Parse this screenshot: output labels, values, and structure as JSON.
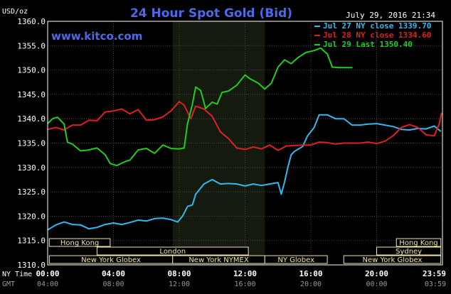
{
  "chart_data": {
    "type": "line",
    "title": "24 Hour Spot Gold (Bid)",
    "watermark": "www.kitco.com",
    "timestamp": "July 29, 2016 21:34",
    "ylabel": "USD/oz",
    "ylim": [
      1310,
      1360
    ],
    "y_ticks": [
      "1360.0",
      "1355.0",
      "1350.0",
      "1345.0",
      "1340.0",
      "1335.0",
      "1330.0",
      "1325.0",
      "1320.0",
      "1315.0",
      "1310.0"
    ],
    "x_range_hours": [
      0,
      24
    ],
    "x_ticks_ny": [
      "00:00",
      "04:00",
      "08:00",
      "12:00",
      "16:00",
      "20:00",
      "23:59"
    ],
    "x_ticks_gmt": [
      "04:00",
      "08:00",
      "12:00",
      "16:00",
      "20:00",
      "00:00",
      "03:59"
    ],
    "x_axis_labels": {
      "ny": "NY Time",
      "gmt": "GMT"
    },
    "highlight_session_hours": [
      7.6,
      13.2
    ],
    "grid": true,
    "legend_position": "top-right",
    "colors": {
      "background": "#000000",
      "session_band": "#141a0e",
      "grid": "#4a4a4a",
      "text": "#ffffff",
      "title": "#4c6ae8",
      "jul27": "#33b8f0",
      "jul28": "#e02020",
      "jul29": "#22cc22",
      "market_box": "#f0e6a8"
    },
    "series": [
      {
        "name": "Jul 27 NY close 1339.70",
        "color": "#33b8f0",
        "points": [
          [
            0,
            1317.2
          ],
          [
            0.5,
            1318.2
          ],
          [
            1,
            1318.8
          ],
          [
            1.5,
            1318.3
          ],
          [
            2,
            1318.2
          ],
          [
            2.5,
            1317.4
          ],
          [
            3,
            1317.7
          ],
          [
            3.5,
            1318.3
          ],
          [
            4,
            1318.6
          ],
          [
            4.5,
            1318.3
          ],
          [
            5,
            1318.7
          ],
          [
            5.5,
            1319.2
          ],
          [
            6,
            1319.0
          ],
          [
            6.5,
            1319.5
          ],
          [
            7,
            1319.6
          ],
          [
            7.5,
            1319.3
          ],
          [
            7.9,
            1318.8
          ],
          [
            8.2,
            1320.0
          ],
          [
            8.5,
            1322.0
          ],
          [
            8.8,
            1322.3
          ],
          [
            9.0,
            1324.5
          ],
          [
            9.5,
            1326.6
          ],
          [
            10,
            1327.5
          ],
          [
            10.5,
            1326.6
          ],
          [
            11,
            1326.7
          ],
          [
            11.5,
            1326.6
          ],
          [
            12,
            1326.2
          ],
          [
            12.5,
            1326.6
          ],
          [
            13,
            1326.3
          ],
          [
            13.5,
            1326.6
          ],
          [
            14,
            1326.9
          ],
          [
            14.2,
            1324.5
          ],
          [
            14.4,
            1327.0
          ],
          [
            14.6,
            1330.0
          ],
          [
            14.8,
            1332.6
          ],
          [
            15,
            1333.3
          ],
          [
            15.5,
            1334.3
          ],
          [
            15.8,
            1336.5
          ],
          [
            16.2,
            1338.2
          ],
          [
            16.5,
            1340.8
          ],
          [
            17,
            1340.8
          ],
          [
            17.5,
            1340.0
          ],
          [
            18,
            1340.0
          ],
          [
            18.2,
            1339.5
          ],
          [
            18.5,
            1338.7
          ],
          [
            19,
            1338.7
          ],
          [
            19.5,
            1338.9
          ],
          [
            20,
            1339.0
          ],
          [
            20.5,
            1338.7
          ],
          [
            21,
            1338.4
          ],
          [
            21.5,
            1337.8
          ],
          [
            22,
            1337.7
          ],
          [
            22.5,
            1338.0
          ],
          [
            23,
            1337.9
          ],
          [
            23.5,
            1338.5
          ],
          [
            23.9,
            1337.4
          ]
        ]
      },
      {
        "name": "Jul 28 NY close 1334.60",
        "color": "#e02020",
        "points": [
          [
            0,
            1337.8
          ],
          [
            0.5,
            1338.2
          ],
          [
            1,
            1337.7
          ],
          [
            1.5,
            1338.7
          ],
          [
            2,
            1338.7
          ],
          [
            2.5,
            1339.7
          ],
          [
            3,
            1339.6
          ],
          [
            3.5,
            1341.4
          ],
          [
            4,
            1341.6
          ],
          [
            4.5,
            1342.0
          ],
          [
            5,
            1341.0
          ],
          [
            5.5,
            1341.9
          ],
          [
            6,
            1339.7
          ],
          [
            6.5,
            1339.8
          ],
          [
            7,
            1340.4
          ],
          [
            7.5,
            1341.6
          ],
          [
            8,
            1343.5
          ],
          [
            8.3,
            1342.8
          ],
          [
            8.7,
            1340.0
          ],
          [
            9,
            1342.6
          ],
          [
            9.5,
            1342.0
          ],
          [
            10,
            1340.5
          ],
          [
            10.5,
            1337.3
          ],
          [
            11,
            1335.9
          ],
          [
            11.5,
            1334.0
          ],
          [
            12,
            1333.7
          ],
          [
            12.5,
            1334.2
          ],
          [
            13,
            1333.8
          ],
          [
            13.5,
            1334.6
          ],
          [
            14,
            1333.5
          ],
          [
            14.5,
            1334.4
          ],
          [
            15,
            1334.5
          ],
          [
            15.5,
            1334.6
          ],
          [
            16,
            1334.6
          ],
          [
            16.5,
            1335.2
          ],
          [
            17,
            1335.1
          ],
          [
            17.5,
            1334.8
          ],
          [
            18,
            1335.0
          ],
          [
            18.5,
            1335.0
          ],
          [
            19,
            1335.0
          ],
          [
            19.5,
            1335.2
          ],
          [
            20,
            1334.9
          ],
          [
            20.5,
            1335.4
          ],
          [
            21,
            1336.5
          ],
          [
            21.5,
            1338.2
          ],
          [
            22,
            1338.8
          ],
          [
            22.5,
            1338.2
          ],
          [
            23,
            1336.7
          ],
          [
            23.5,
            1336.5
          ],
          [
            23.8,
            1338.9
          ],
          [
            23.95,
            1341.2
          ]
        ]
      },
      {
        "name": "Jul 29 Last 1350.40",
        "color": "#22cc22",
        "points": [
          [
            0,
            1339.0
          ],
          [
            0.3,
            1340.0
          ],
          [
            0.6,
            1340.3
          ],
          [
            1,
            1338.9
          ],
          [
            1.2,
            1335.2
          ],
          [
            1.5,
            1334.8
          ],
          [
            2,
            1333.4
          ],
          [
            2.5,
            1333.6
          ],
          [
            3,
            1334.0
          ],
          [
            3.5,
            1332.6
          ],
          [
            3.8,
            1330.8
          ],
          [
            4.2,
            1330.4
          ],
          [
            4.7,
            1331.2
          ],
          [
            5,
            1331.5
          ],
          [
            5.5,
            1333.6
          ],
          [
            6,
            1333.9
          ],
          [
            6.5,
            1332.9
          ],
          [
            7,
            1334.6
          ],
          [
            7.5,
            1333.9
          ],
          [
            8,
            1333.8
          ],
          [
            8.3,
            1334.0
          ],
          [
            8.5,
            1339.0
          ],
          [
            8.8,
            1343.0
          ],
          [
            9,
            1346.5
          ],
          [
            9.3,
            1345.8
          ],
          [
            9.6,
            1342.1
          ],
          [
            10,
            1343.4
          ],
          [
            10.3,
            1343.0
          ],
          [
            10.6,
            1345.4
          ],
          [
            11,
            1345.7
          ],
          [
            11.5,
            1346.9
          ],
          [
            12,
            1349.0
          ],
          [
            12.3,
            1348.2
          ],
          [
            12.8,
            1347.3
          ],
          [
            13.2,
            1346.1
          ],
          [
            13.6,
            1347.3
          ],
          [
            14,
            1350.6
          ],
          [
            14.4,
            1352.1
          ],
          [
            14.8,
            1351.3
          ],
          [
            15.2,
            1352.5
          ],
          [
            15.7,
            1353.6
          ],
          [
            16.2,
            1354.0
          ],
          [
            16.6,
            1354.5
          ],
          [
            17,
            1353.3
          ],
          [
            17.3,
            1350.6
          ],
          [
            17.7,
            1350.5
          ],
          [
            18,
            1350.5
          ],
          [
            18.5,
            1350.5
          ],
          [
            18.5,
            1350.4
          ]
        ]
      }
    ],
    "market_sessions": [
      {
        "label": "Hong Kong",
        "row": 0,
        "start": 0.1,
        "end": 3.8,
        "open": true
      },
      {
        "label": "Hong Kong",
        "row": 0,
        "start": 21.2,
        "end": 23.9,
        "open": false
      },
      {
        "label": "London",
        "row": 1,
        "start": 3.0,
        "end": 12.2,
        "open": true
      },
      {
        "label": "Sydney",
        "row": 1,
        "start": 20.0,
        "end": 23.9,
        "open": false
      },
      {
        "label": "New York Globex",
        "row": 2,
        "start": 0.1,
        "end": 7.6,
        "open": true
      },
      {
        "label": "New York NYMEX",
        "row": 2,
        "start": 7.6,
        "end": 13.2,
        "open": true
      },
      {
        "label": "NY Globex",
        "row": 2,
        "start": 13.2,
        "end": 17.0,
        "open": true
      },
      {
        "label": "New York Globex",
        "row": 2,
        "start": 18.0,
        "end": 23.9,
        "open": false
      }
    ]
  }
}
